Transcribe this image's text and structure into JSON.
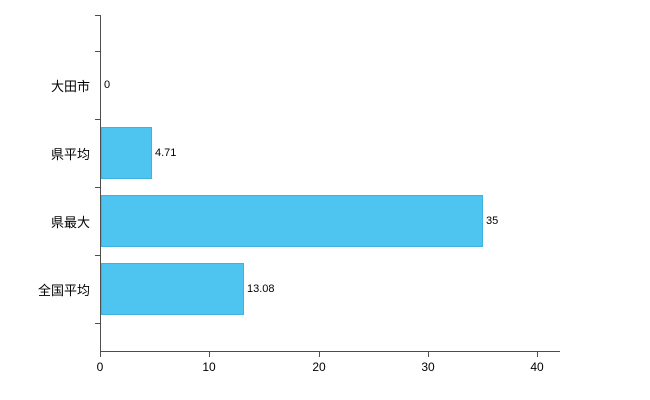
{
  "chart_data": {
    "type": "bar",
    "orientation": "horizontal",
    "title": "",
    "xlabel": "",
    "ylabel": "",
    "categories": [
      "大田市",
      "県平均",
      "県最大",
      "全国平均"
    ],
    "values": [
      0,
      4.71,
      35,
      13.08
    ],
    "value_labels": [
      "0",
      "4.71",
      "35",
      "13.08"
    ],
    "x_ticks": [
      0,
      10,
      20,
      30,
      40
    ],
    "xlim": [
      0,
      42
    ],
    "grid": false,
    "legend_position": "none",
    "bar_color": "#4dc5f0",
    "axis_color": "#4d4d4d",
    "text_color": "#000000",
    "background_color": "#ffffff"
  }
}
